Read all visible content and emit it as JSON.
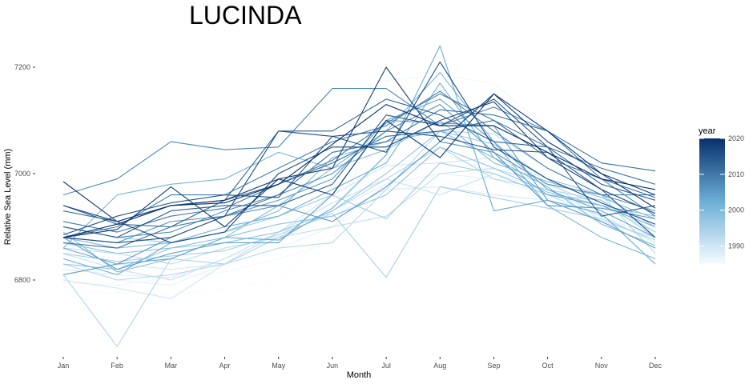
{
  "chart_data": {
    "type": "line",
    "title": "LUCINDA",
    "xlabel": "Month",
    "ylabel": "Relative Sea Level (mm)",
    "categories": [
      "Jan",
      "Feb",
      "Mar",
      "Apr",
      "May",
      "Jun",
      "Jul",
      "Aug",
      "Sep",
      "Oct",
      "Nov",
      "Dec"
    ],
    "ylim": [
      6670,
      7245
    ],
    "yticks": [
      6800,
      7000,
      7200
    ],
    "grid": false,
    "legend": {
      "title": "year",
      "position": "right",
      "type": "colorbar",
      "ticks": [
        1990,
        2000,
        2010,
        2020
      ],
      "range": [
        1985,
        2020
      ],
      "color_low": "#f7fbff",
      "color_high": "#08306b"
    },
    "series": [
      {
        "year": 1985,
        "values": [
          6780,
          6775,
          6772,
          6785,
          6800,
          6900,
          6955,
          6985,
          6995,
          6965,
          6935,
          6905
        ]
      },
      {
        "year": 1986,
        "values": [
          6795,
          6790,
          6805,
          6815,
          6840,
          6870,
          7175,
          7185,
          7170,
          7085,
          6960,
          6895
        ]
      },
      {
        "year": 1987,
        "values": [
          6840,
          6800,
          6790,
          6830,
          6860,
          6900,
          6980,
          7000,
          6990,
          6960,
          6910,
          6875
        ]
      },
      {
        "year": 1988,
        "values": [
          6820,
          6810,
          6805,
          6840,
          6880,
          6930,
          6980,
          7040,
          7000,
          6970,
          6920,
          6880
        ]
      },
      {
        "year": 1989,
        "values": [
          6860,
          6830,
          6820,
          6830,
          6890,
          6920,
          6970,
          6975,
          6960,
          6950,
          6910,
          6860
        ]
      },
      {
        "year": 1990,
        "values": [
          6800,
          6785,
          6765,
          6830,
          6890,
          6960,
          7015,
          7020,
          7030,
          6990,
          6910,
          6880
        ]
      },
      {
        "year": 1991,
        "values": [
          6850,
          6820,
          6800,
          6840,
          6890,
          6945,
          6990,
          6960,
          7000,
          6960,
          6920,
          6870
        ]
      },
      {
        "year": 1992,
        "values": [
          6860,
          6850,
          6830,
          6860,
          6880,
          6900,
          6920,
          7000,
          7010,
          6980,
          6940,
          6890
        ]
      },
      {
        "year": 1993,
        "values": [
          6830,
          6800,
          6810,
          6830,
          6860,
          6870,
          6970,
          7080,
          7075,
          7010,
          6960,
          6850
        ]
      },
      {
        "year": 1994,
        "values": [
          6810,
          6675,
          6840,
          6830,
          6880,
          6930,
          6990,
          7050,
          6990,
          6970,
          6950,
          6890
        ]
      },
      {
        "year": 1995,
        "values": [
          6850,
          6835,
          6845,
          6855,
          6885,
          6925,
          6805,
          6975,
          6955,
          6935,
          6915,
          6875
        ]
      },
      {
        "year": 1996,
        "values": [
          6900,
          6880,
          6870,
          6890,
          6920,
          6960,
          6915,
          7020,
          7000,
          6960,
          6950,
          6880
        ]
      },
      {
        "year": 1997,
        "values": [
          6830,
          6820,
          6860,
          6870,
          6890,
          6930,
          7000,
          7080,
          7055,
          6990,
          6960,
          6900
        ]
      },
      {
        "year": 1998,
        "values": [
          6870,
          6850,
          6860,
          6880,
          6905,
          6920,
          6960,
          7050,
          7010,
          6965,
          6940,
          6920
        ]
      },
      {
        "year": 1999,
        "values": [
          6890,
          6815,
          6840,
          6880,
          6940,
          7010,
          7045,
          7100,
          7020,
          6985,
          6955,
          6915
        ]
      },
      {
        "year": 2000,
        "values": [
          6880,
          6860,
          6870,
          6890,
          6930,
          7030,
          7060,
          7080,
          7030,
          6975,
          6905,
          6865
        ]
      },
      {
        "year": 2001,
        "values": [
          6860,
          6960,
          6980,
          6990,
          7040,
          7010,
          7080,
          7190,
          7060,
          6940,
          6880,
          6840
        ]
      },
      {
        "year": 2002,
        "values": [
          6840,
          6810,
          6870,
          6900,
          6920,
          6970,
          7020,
          7170,
          7030,
          6960,
          6940,
          6900
        ]
      },
      {
        "year": 2003,
        "values": [
          6860,
          6830,
          6840,
          6880,
          6875,
          6935,
          7035,
          7240,
          6930,
          6950,
          6925,
          6830
        ]
      },
      {
        "year": 2004,
        "values": [
          6880,
          6820,
          6850,
          6870,
          6870,
          6960,
          7100,
          7140,
          7060,
          6970,
          6930,
          6880
        ]
      },
      {
        "year": 2005,
        "values": [
          6810,
          6830,
          6880,
          6920,
          6950,
          6990,
          7100,
          7095,
          7090,
          6950,
          6910,
          6860
        ]
      },
      {
        "year": 2006,
        "values": [
          6880,
          6870,
          6910,
          6920,
          6940,
          6910,
          6975,
          7060,
          7040,
          6940,
          6935,
          6915
        ]
      },
      {
        "year": 2007,
        "values": [
          6900,
          6880,
          6890,
          6930,
          6960,
          7000,
          7080,
          7130,
          7040,
          6980,
          6960,
          6930
        ]
      },
      {
        "year": 2008,
        "values": [
          6960,
          6990,
          7060,
          7045,
          7050,
          7160,
          7160,
          7090,
          7125,
          7080,
          6990,
          6920
        ]
      },
      {
        "year": 2009,
        "values": [
          6880,
          6900,
          6960,
          6960,
          7010,
          7060,
          7090,
          7155,
          7080,
          7010,
          6960,
          6960
        ]
      },
      {
        "year": 2010,
        "values": [
          6910,
          6890,
          6920,
          6935,
          6980,
          7025,
          7095,
          7150,
          7100,
          7050,
          7010,
          6980
        ]
      },
      {
        "year": 2011,
        "values": [
          6870,
          6860,
          6900,
          6920,
          6960,
          7040,
          7060,
          7120,
          7110,
          7080,
          7020,
          7005
        ]
      },
      {
        "year": 2012,
        "values": [
          6930,
          6910,
          6940,
          6950,
          6980,
          7020,
          7070,
          7080,
          7100,
          7030,
          6990,
          6955
        ]
      },
      {
        "year": 2013,
        "values": [
          6940,
          6905,
          6900,
          6950,
          7080,
          7080,
          7140,
          7110,
          7060,
          7050,
          6980,
          6950
        ]
      },
      {
        "year": 2014,
        "values": [
          6900,
          6880,
          6930,
          6940,
          6940,
          6980,
          7110,
          7090,
          7140,
          7050,
          6920,
          6940
        ]
      },
      {
        "year": 2015,
        "values": [
          6885,
          6920,
          6945,
          6960,
          6955,
          7070,
          7080,
          7070,
          7045,
          7040,
          6970,
          6880
        ]
      },
      {
        "year": 2016,
        "values": [
          6880,
          6870,
          6880,
          6920,
          7080,
          7070,
          7040,
          7210,
          7050,
          6990,
          6945,
          6905
        ]
      },
      {
        "year": 2017,
        "values": [
          6940,
          6910,
          6870,
          6890,
          7000,
          7050,
          7050,
          7100,
          7135,
          7030,
          6970,
          6925
        ]
      },
      {
        "year": 2018,
        "values": [
          6880,
          6895,
          6975,
          6900,
          6990,
          7010,
          7200,
          7060,
          7150,
          7060,
          7000,
          6960
        ]
      },
      {
        "year": 2019,
        "values": [
          6985,
          6910,
          6940,
          6950,
          6990,
          6960,
          7100,
          7030,
          7150,
          7080,
          7000,
          6935
        ]
      },
      {
        "year": 2020,
        "values": [
          6880,
          6905,
          6940,
          6945,
          6980,
          7055,
          7130,
          7090,
          7090,
          7040,
          6990,
          6970
        ]
      }
    ]
  }
}
